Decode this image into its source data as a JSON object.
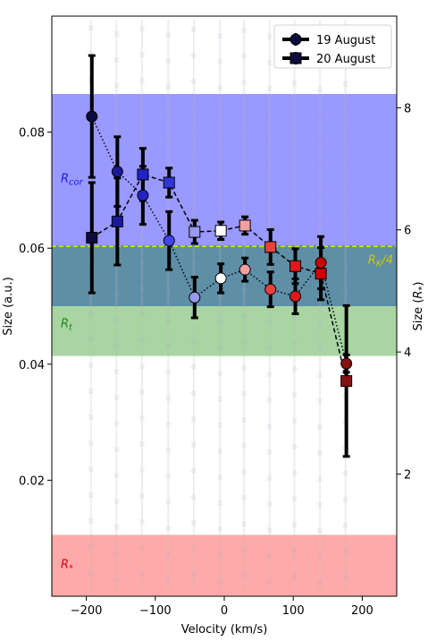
{
  "chart_data": {
    "type": "scatter",
    "xlabel": "Velocity (km/s)",
    "ylabel": "Size (a.u.)",
    "ylabel_right": "Size (R_*)",
    "xlim": [
      -250,
      250
    ],
    "ylim": [
      0,
      0.1
    ],
    "y2lim": [
      0,
      9.5
    ],
    "x_ticks": [
      -200,
      -100,
      0,
      100,
      200
    ],
    "y_ticks": [
      0.02,
      0.04,
      0.06,
      0.08
    ],
    "y2_ticks": [
      2,
      4,
      6,
      8
    ],
    "grid": false,
    "legend": {
      "placement": "top-right",
      "entries": [
        "19 August",
        "20 August"
      ]
    },
    "bands": [
      {
        "label": "R_cor",
        "y0": 0.0605,
        "y1": 0.0865,
        "color": "#9999ff",
        "label_color": "#1a1aff",
        "label_y": 0.072
      },
      {
        "label": "R_t",
        "y0": 0.0415,
        "y1": 0.05,
        "color": "#a8d5a2",
        "label_color": "#1a8a1a",
        "label_y": 0.047
      },
      {
        "label": "R_*",
        "y0": 0.0,
        "y1": 0.0105,
        "color": "#ffaaaa",
        "label_color": "#dd0000",
        "label_y": 0.0055
      }
    ],
    "overlap_band": {
      "y0": 0.05,
      "y1": 0.0605,
      "color": "#5e8fa6"
    },
    "reference_line": {
      "label": "R_K/4",
      "y": 0.0603,
      "color": "#e8e800"
    },
    "series": [
      {
        "name": "19 August",
        "marker": "circle",
        "linestyle": "dotted",
        "x": [
          -192,
          -155,
          -118,
          -80,
          -43,
          -5,
          30,
          67,
          103,
          140,
          177
        ],
        "y": [
          0.0827,
          0.0732,
          0.0691,
          0.0613,
          0.0515,
          0.0548,
          0.0563,
          0.0529,
          0.0517,
          0.0575,
          0.0401
        ],
        "yerr": [
          0.0105,
          0.006,
          0.005,
          0.005,
          0.0035,
          0.0025,
          0.002,
          0.003,
          0.003,
          0.0045,
          0.0015
        ],
        "colors": [
          "#0d0d3d",
          "#1a1a99",
          "#2222cc",
          "#4444ee",
          "#9999ee",
          "#ffffff",
          "#f0a0a0",
          "#e84040",
          "#dd1a1a",
          "#cc0000",
          "#881010"
        ]
      },
      {
        "name": "20 August",
        "marker": "square",
        "linestyle": "dashed",
        "x": [
          -192,
          -155,
          -118,
          -80,
          -43,
          -5,
          30,
          67,
          103,
          140,
          177
        ],
        "y": [
          0.0618,
          0.0646,
          0.0727,
          0.0713,
          0.0628,
          0.063,
          0.0639,
          0.0602,
          0.0569,
          0.0556,
          0.0371
        ],
        "yerr": [
          0.0095,
          0.0075,
          0.0045,
          0.0025,
          0.002,
          0.0015,
          0.0015,
          0.003,
          0.003,
          0.0045,
          0.013
        ],
        "colors": [
          "#0d0d3d",
          "#1a1a99",
          "#2222cc",
          "#3333dd",
          "#9999ee",
          "#ffffff",
          "#f0a0a0",
          "#e84040",
          "#dd1a1a",
          "#cc0000",
          "#881010"
        ]
      }
    ]
  }
}
